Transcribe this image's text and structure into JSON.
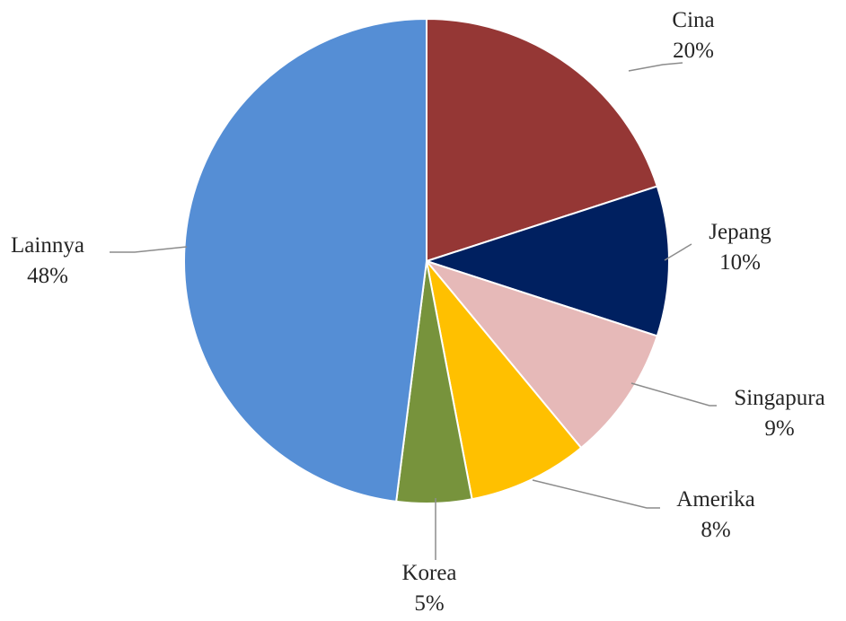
{
  "chart_data": {
    "type": "pie",
    "title": "",
    "start_angle_deg": 0,
    "direction": "clockwise",
    "slices": [
      {
        "label": "Cina",
        "value": 20,
        "display": "20%",
        "color": "#953735"
      },
      {
        "label": "Jepang",
        "value": 10,
        "display": "10%",
        "color": "#002060"
      },
      {
        "label": "Singapura",
        "value": 9,
        "display": "9%",
        "color": "#E6B9B8"
      },
      {
        "label": "Amerika",
        "value": 8,
        "display": "8%",
        "color": "#FFC000"
      },
      {
        "label": "Korea",
        "value": 5,
        "display": "5%",
        "color": "#77933C"
      },
      {
        "label": "Lainnya",
        "value": 48,
        "display": "48%",
        "color": "#558ED5"
      }
    ]
  }
}
